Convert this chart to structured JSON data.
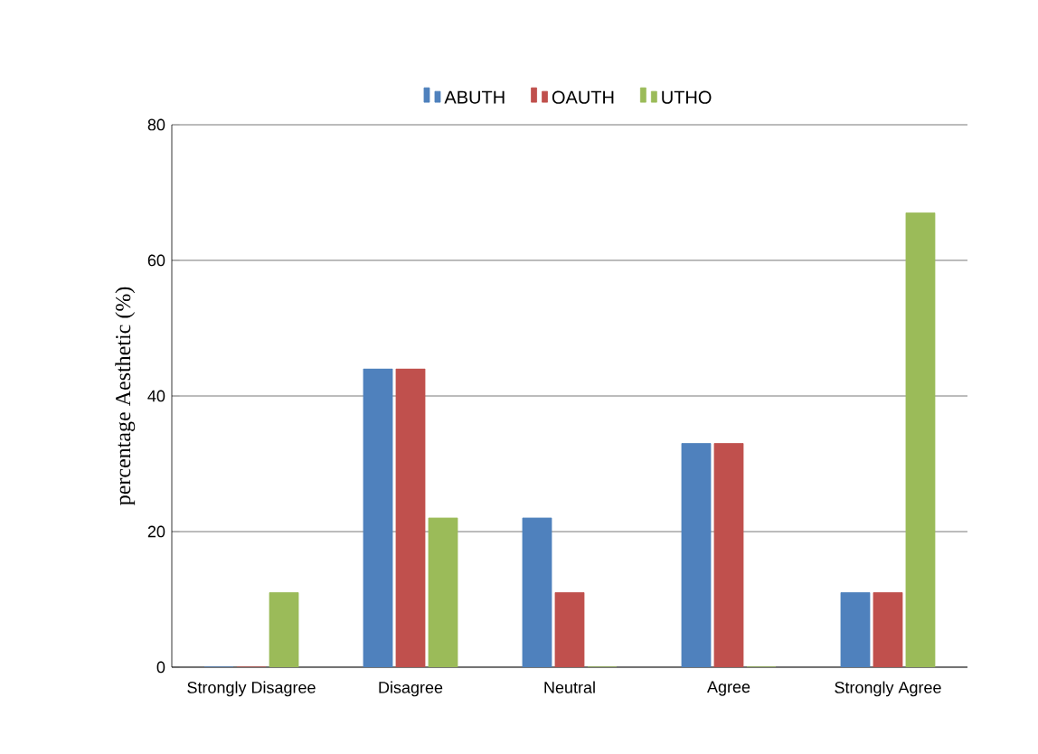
{
  "chart_data": {
    "type": "bar",
    "ylabel": "percentage Aesthetic (%)",
    "categories": [
      "Strongly Disagree",
      "Disagree",
      "Neutral",
      "Agree",
      "Strongly Agree"
    ],
    "series": [
      {
        "name": "ABUTH",
        "color": "#4f81bd",
        "values": [
          0,
          44,
          22,
          33,
          11
        ]
      },
      {
        "name": "OAUTH",
        "color": "#c0504d",
        "values": [
          0,
          44,
          11,
          33,
          11
        ]
      },
      {
        "name": "UTHO",
        "color": "#9bbb59",
        "values": [
          11,
          22,
          0,
          0,
          67
        ]
      }
    ],
    "ylim": [
      0,
      80
    ],
    "yticks": [
      0,
      20,
      40,
      60,
      80
    ],
    "grid": "y",
    "legend": "top"
  }
}
